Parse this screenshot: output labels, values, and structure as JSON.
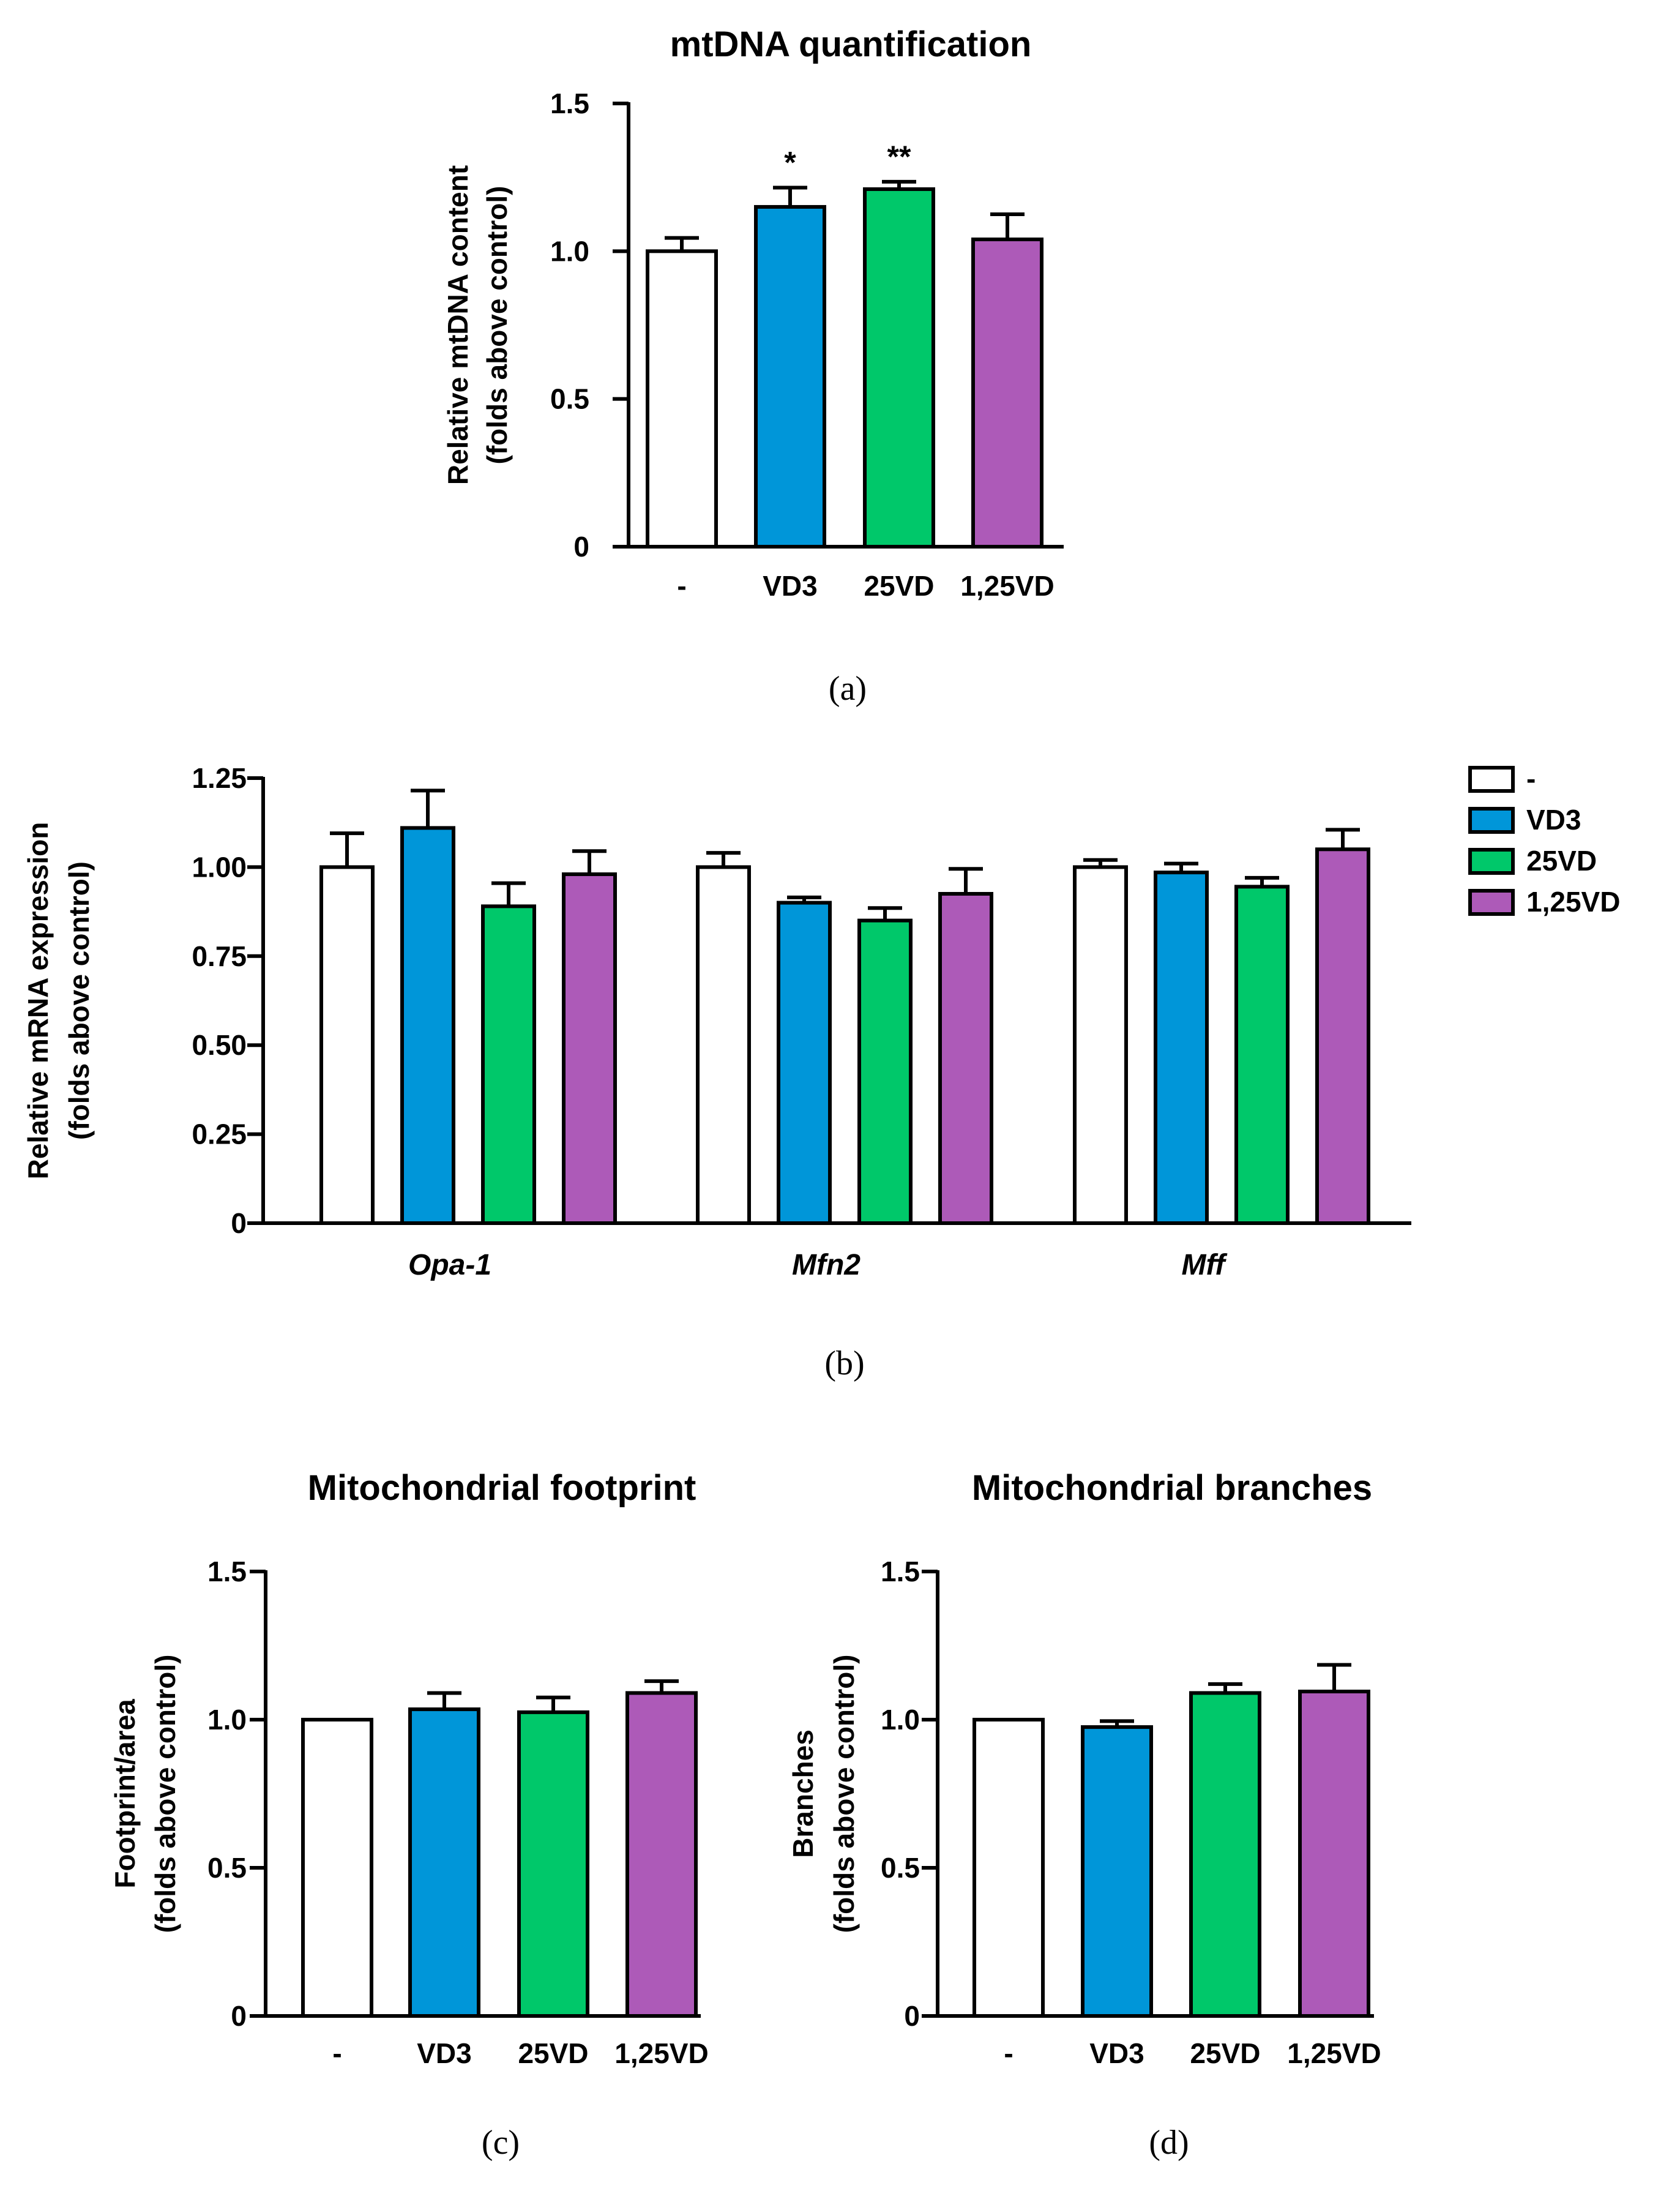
{
  "chart_data": [
    {
      "id": "a",
      "type": "bar",
      "title": "mtDNA quantification",
      "ylabel_line1": "Relative mtDNA content",
      "ylabel_line2": "(folds above control)",
      "categories": [
        "-",
        "VD3",
        "25VD",
        "1,25VD"
      ],
      "values": [
        1.0,
        1.15,
        1.21,
        1.04
      ],
      "errors": [
        0.045,
        0.065,
        0.025,
        0.085
      ],
      "significance": [
        "",
        "*",
        "**",
        ""
      ],
      "yticks": [
        "0",
        "0.5",
        "1.0",
        "1.5"
      ],
      "ylim": [
        0,
        1.5
      ],
      "caption": "(a)"
    },
    {
      "id": "b",
      "type": "bar",
      "title": "",
      "ylabel_line1": "Relative mRNA expression",
      "ylabel_line2": "(folds above control)",
      "groups": [
        "Opa-1",
        "Mfn2",
        "Mff"
      ],
      "series": [
        {
          "name": "-",
          "values": [
            1.0,
            1.0,
            1.0
          ],
          "errors": [
            0.095,
            0.04,
            0.02
          ]
        },
        {
          "name": "VD3",
          "values": [
            1.11,
            0.9,
            0.985
          ],
          "errors": [
            0.105,
            0.015,
            0.025
          ]
        },
        {
          "name": "25VD",
          "values": [
            0.89,
            0.85,
            0.945
          ],
          "errors": [
            0.065,
            0.035,
            0.025
          ]
        },
        {
          "name": "1,25VD",
          "values": [
            0.98,
            0.925,
            1.05
          ],
          "errors": [
            0.065,
            0.07,
            0.055
          ]
        }
      ],
      "yticks": [
        "0",
        "0.25",
        "0.50",
        "0.75",
        "1.00",
        "1.25"
      ],
      "ylim": [
        0,
        1.25
      ],
      "legend_position": "top-right",
      "caption": "(b)"
    },
    {
      "id": "c",
      "type": "bar",
      "title": "Mitochondrial footprint",
      "ylabel_line1": "Footprint/area",
      "ylabel_line2": "(folds above control)",
      "categories": [
        "-",
        "VD3",
        "25VD",
        "1,25VD"
      ],
      "values": [
        1.0,
        1.035,
        1.025,
        1.09
      ],
      "errors": [
        0.0,
        0.055,
        0.05,
        0.04
      ],
      "yticks": [
        "0",
        "0.5",
        "1.0",
        "1.5"
      ],
      "ylim": [
        0,
        1.5
      ],
      "caption": "(c)"
    },
    {
      "id": "d",
      "type": "bar",
      "title": "Mitochondrial branches",
      "ylabel_line1": "Branches",
      "ylabel_line2": "(folds above control)",
      "categories": [
        "-",
        "VD3",
        "25VD",
        "1,25VD"
      ],
      "values": [
        1.0,
        0.975,
        1.09,
        1.095
      ],
      "errors": [
        0.0,
        0.02,
        0.03,
        0.09
      ],
      "yticks": [
        "0",
        "0.5",
        "1.0",
        "1.5"
      ],
      "ylim": [
        0,
        1.5
      ],
      "caption": "(d)"
    }
  ],
  "colors": {
    "-": "#ffffff",
    "VD3": "#0096d9",
    "25VD": "#00c86a",
    "1,25VD": "#ad5ab8",
    "axis": "#000000"
  }
}
